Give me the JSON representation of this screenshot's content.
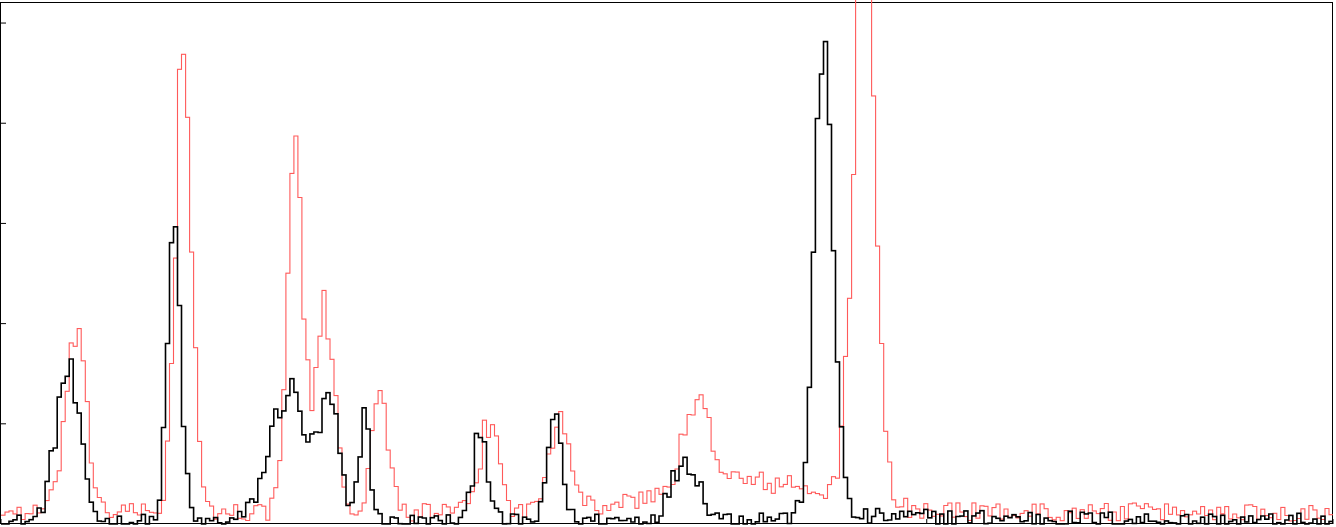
{
  "chart_data": {
    "type": "step",
    "title": "",
    "xlabel": "",
    "ylabel": "",
    "grid": false,
    "legend": "none",
    "xlim": [
      0,
      1000
    ],
    "ylim": [
      0,
      52
    ],
    "series": [
      {
        "color": "#000000",
        "peaks": [
          {
            "center": 50,
            "height": 15,
            "sigma": 9
          },
          {
            "center": 130,
            "height": 29,
            "sigma": 5
          },
          {
            "center": 216,
            "height": 13,
            "sigma": 14
          },
          {
            "center": 247,
            "height": 11,
            "sigma": 7
          },
          {
            "center": 273,
            "height": 11,
            "sigma": 4
          },
          {
            "center": 360,
            "height": 10,
            "sigma": 5
          },
          {
            "center": 416,
            "height": 11,
            "sigma": 5
          },
          {
            "center": 514,
            "height": 6,
            "sigma": 10
          },
          {
            "center": 618,
            "height": 47,
            "sigma": 7
          },
          {
            "center": 660,
            "height": 0.5,
            "sigma": 150
          }
        ],
        "baseline": 0.2
      },
      {
        "color": "#ff5a5a",
        "peaks": [
          {
            "center": 56,
            "height": 17,
            "sigma": 8
          },
          {
            "center": 137,
            "height": 46,
            "sigma": 6
          },
          {
            "center": 221,
            "height": 36,
            "sigma": 6
          },
          {
            "center": 244,
            "height": 20,
            "sigma": 7
          },
          {
            "center": 285,
            "height": 12,
            "sigma": 6
          },
          {
            "center": 367,
            "height": 9,
            "sigma": 7
          },
          {
            "center": 420,
            "height": 10,
            "sigma": 8
          },
          {
            "center": 523,
            "height": 8,
            "sigma": 11
          },
          {
            "center": 560,
            "height": 3,
            "sigma": 60
          },
          {
            "center": 648,
            "height": 58,
            "sigma": 8
          }
        ],
        "baseline": 1.2
      }
    ]
  }
}
